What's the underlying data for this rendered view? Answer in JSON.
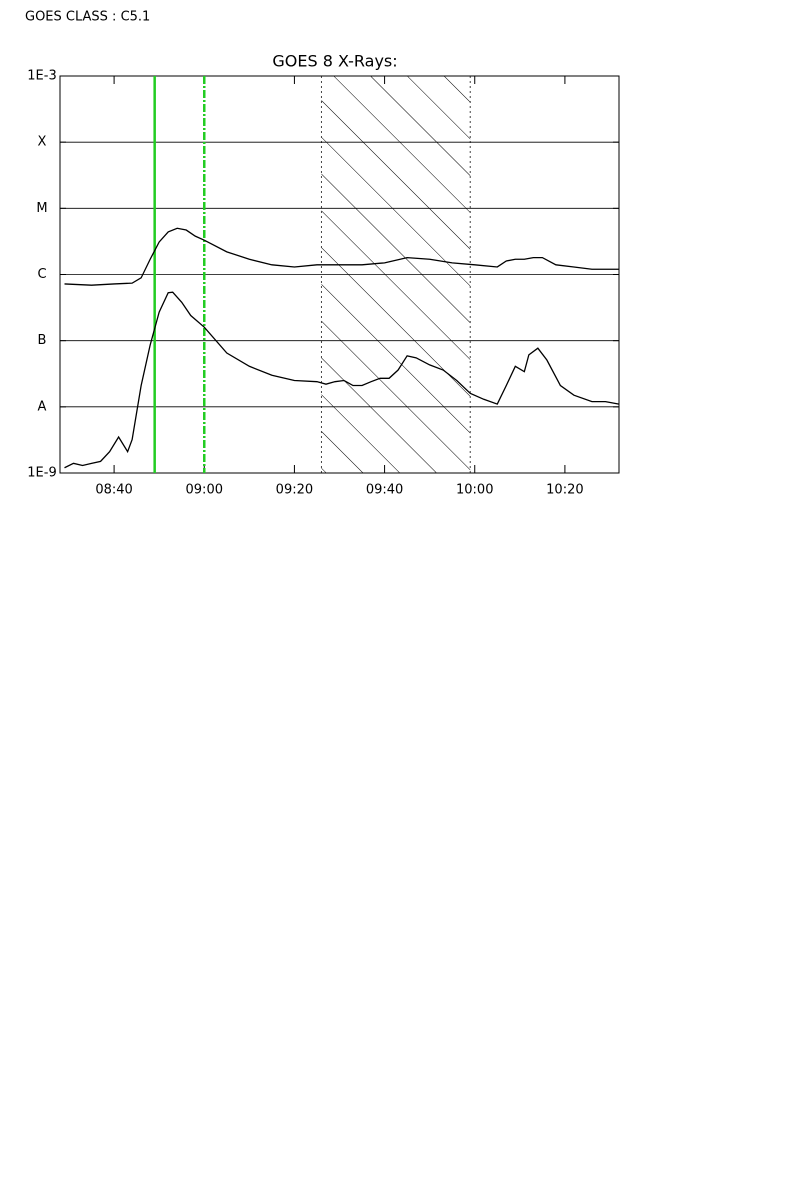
{
  "header": {
    "text": "GOES CLASS : C5.1"
  },
  "chart_data": {
    "type": "line",
    "title": "GOES 8 X-Rays:",
    "log_y": true,
    "grid": true,
    "xlim": [
      "08:28",
      "10:32"
    ],
    "xticks": [
      "08:40",
      "09:00",
      "09:20",
      "09:40",
      "10:00",
      "10:20"
    ],
    "ylim": [
      1e-09,
      0.001
    ],
    "yticks": [
      {
        "value": 1e-09,
        "label": "1E-9"
      },
      {
        "value": 1e-08,
        "label": "A"
      },
      {
        "value": 1e-07,
        "label": "B"
      },
      {
        "value": 1e-06,
        "label": "C"
      },
      {
        "value": 1e-05,
        "label": "M"
      },
      {
        "value": 0.0001,
        "label": "X"
      },
      {
        "value": 0.001,
        "label": "1E-3"
      }
    ],
    "markers": [
      {
        "x": "08:49",
        "color": "#22cc22",
        "dash": false
      },
      {
        "x": "09:00",
        "color": "#22cc22",
        "dash": true
      }
    ],
    "shaded_region": [
      "09:26",
      "09:59"
    ],
    "series": [
      {
        "color": "#000000",
        "x": [
          "08:29",
          "08:35",
          "08:40",
          "08:44",
          "08:46",
          "08:48",
          "08:50",
          "08:52",
          "08:54",
          "08:56",
          "08:58",
          "09:00",
          "09:05",
          "09:10",
          "09:15",
          "09:20",
          "09:25",
          "09:30",
          "09:35",
          "09:40",
          "09:45",
          "09:50",
          "09:55",
          "10:00",
          "10:05",
          "10:07",
          "10:09",
          "10:11",
          "10:13",
          "10:15",
          "10:18",
          "10:22",
          "10:26",
          "10:32"
        ],
        "values": [
          7.2e-07,
          6.9e-07,
          7.2e-07,
          7.4e-07,
          8.9e-07,
          1.7e-06,
          3.1e-06,
          4.4e-06,
          5e-06,
          4.7e-06,
          3.8e-06,
          3.3e-06,
          2.2e-06,
          1.7e-06,
          1.4e-06,
          1.3e-06,
          1.4e-06,
          1.4e-06,
          1.4e-06,
          1.5e-06,
          1.8e-06,
          1.7e-06,
          1.5e-06,
          1.4e-06,
          1.3e-06,
          1.6e-06,
          1.7e-06,
          1.7e-06,
          1.8e-06,
          1.8e-06,
          1.4e-06,
          1.3e-06,
          1.2e-06,
          1.2e-06
        ]
      },
      {
        "color": "#000000",
        "x": [
          "08:29",
          "08:31",
          "08:33",
          "08:35",
          "08:37",
          "08:39",
          "08:41",
          "08:43",
          "08:44",
          "08:46",
          "08:48",
          "08:50",
          "08:52",
          "08:53",
          "08:55",
          "08:57",
          "09:00",
          "09:05",
          "09:10",
          "09:15",
          "09:20",
          "09:25",
          "09:27",
          "09:29",
          "09:31",
          "09:33",
          "09:35",
          "09:37",
          "09:39",
          "09:41",
          "09:43",
          "09:45",
          "09:47",
          "09:50",
          "09:53",
          "09:56",
          "09:59",
          "10:02",
          "10:05",
          "10:07",
          "10:09",
          "10:11",
          "10:12",
          "10:14",
          "10:16",
          "10:19",
          "10:22",
          "10:26",
          "10:29",
          "10:32"
        ],
        "values": [
          1.2e-09,
          1.4e-09,
          1.3e-09,
          1.4e-09,
          1.5e-09,
          2.1e-09,
          3.5e-09,
          2.1e-09,
          3.2e-09,
          2.1e-08,
          8.6e-08,
          2.7e-07,
          5.3e-07,
          5.4e-07,
          3.8e-07,
          2.4e-07,
          1.6e-07,
          6.5e-08,
          4.1e-08,
          3e-08,
          2.5e-08,
          2.4e-08,
          2.2e-08,
          2.4e-08,
          2.5e-08,
          2.1e-08,
          2.1e-08,
          2.4e-08,
          2.7e-08,
          2.7e-08,
          3.6e-08,
          5.9e-08,
          5.5e-08,
          4.3e-08,
          3.6e-08,
          2.5e-08,
          1.6e-08,
          1.3e-08,
          1.1e-08,
          2.1e-08,
          4.1e-08,
          3.4e-08,
          6.1e-08,
          7.7e-08,
          5.1e-08,
          2.1e-08,
          1.5e-08,
          1.2e-08,
          1.2e-08,
          1.1e-08
        ]
      }
    ]
  }
}
